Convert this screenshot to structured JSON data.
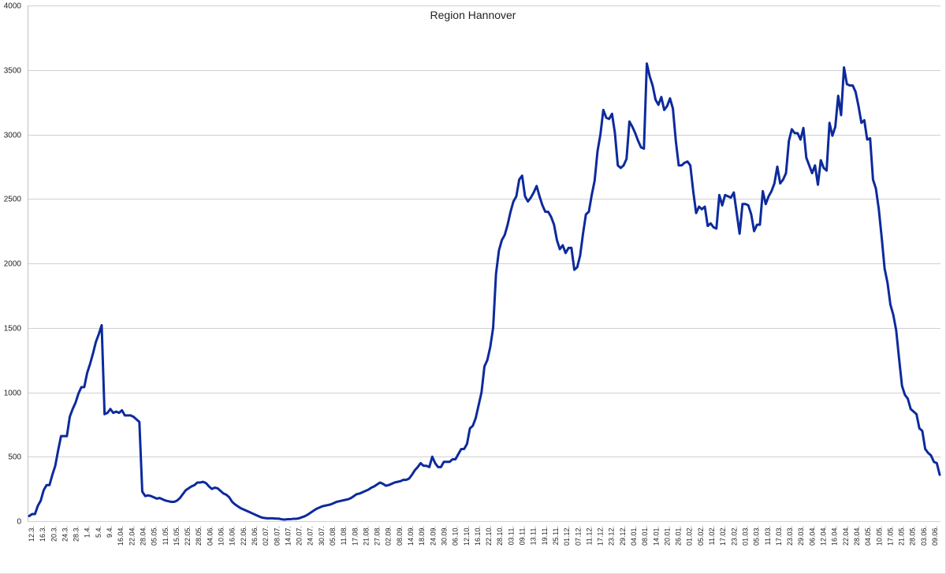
{
  "chart_data": {
    "type": "line",
    "title": "Region Hannover",
    "xlabel": "",
    "ylabel": "",
    "ylim": [
      0,
      4000
    ],
    "y_ticks": [
      0,
      500,
      1000,
      1500,
      2000,
      2500,
      3000,
      3500,
      4000
    ],
    "grid": true,
    "legend": "none",
    "colors": {
      "series": "#0d2a9c",
      "grid": "#d0d0d0",
      "text": "#222222"
    },
    "x_tick_labels": [
      "12.3.",
      "16.3.",
      "20.3.",
      "24.3.",
      "28.3.",
      "1.4.",
      "5.4.",
      "9.4.",
      "16.04.",
      "22.04.",
      "28.04.",
      "05.05.",
      "11.05.",
      "15.05.",
      "22.05.",
      "28.05.",
      "04.06.",
      "10.06.",
      "16.06.",
      "22.06.",
      "26.06.",
      "02.07.",
      "08.07.",
      "14.07.",
      "20.07.",
      "24.07.",
      "30.07.",
      "05.08.",
      "11.08.",
      "17.08.",
      "21.08.",
      "27.08.",
      "02.09.",
      "08.09.",
      "14.09.",
      "18.09.",
      "24.09.",
      "30.09.",
      "06.10.",
      "12.10.",
      "16.10.",
      "22.10.",
      "28.10.",
      "03.11.",
      "09.11.",
      "13.11.",
      "19.11.",
      "25.11.",
      "01.12.",
      "07.12.",
      "11.12.",
      "17.12.",
      "23.12.",
      "29.12.",
      "04.01.",
      "08.01.",
      "14.01.",
      "20.01.",
      "26.01.",
      "01.02.",
      "05.02.",
      "11.02.",
      "17.02.",
      "23.02.",
      "01.03.",
      "05.03.",
      "11.03.",
      "17.03.",
      "23.03.",
      "29.03.",
      "06.04.",
      "12.04.",
      "16.04.",
      "22.04.",
      "28.04.",
      "04.05.",
      "10.05.",
      "17.05.",
      "21.05.",
      "28.05.",
      "03.06.",
      "09.06."
    ],
    "series": [
      {
        "values": [
          40,
          55,
          55,
          120,
          160,
          240,
          280,
          280,
          360,
          430,
          550,
          660,
          660,
          660,
          810,
          870,
          920,
          990,
          1040,
          1040,
          1150,
          1220,
          1300,
          1390,
          1450,
          1520,
          830,
          840,
          870,
          840,
          850,
          840,
          860,
          820,
          820,
          820,
          810,
          790,
          770,
          230,
          195,
          200,
          195,
          185,
          175,
          180,
          170,
          160,
          155,
          150,
          150,
          160,
          180,
          210,
          240,
          255,
          270,
          280,
          300,
          300,
          305,
          295,
          270,
          250,
          260,
          255,
          235,
          215,
          205,
          185,
          150,
          130,
          115,
          100,
          90,
          80,
          70,
          60,
          50,
          40,
          30,
          25,
          22,
          22,
          22,
          20,
          20,
          15,
          12,
          15,
          15,
          18,
          18,
          22,
          30,
          38,
          50,
          65,
          80,
          95,
          105,
          115,
          120,
          125,
          130,
          140,
          150,
          155,
          160,
          165,
          170,
          180,
          195,
          210,
          215,
          225,
          235,
          245,
          260,
          270,
          285,
          300,
          290,
          275,
          280,
          290,
          300,
          305,
          310,
          320,
          320,
          330,
          360,
          395,
          420,
          450,
          430,
          430,
          420,
          500,
          450,
          420,
          420,
          460,
          460,
          460,
          480,
          480,
          520,
          560,
          560,
          600,
          720,
          740,
          800,
          900,
          1000,
          1200,
          1250,
          1350,
          1500,
          1920,
          2100,
          2180,
          2220,
          2300,
          2400,
          2480,
          2520,
          2650,
          2680,
          2520,
          2480,
          2510,
          2550,
          2600,
          2520,
          2450,
          2400,
          2400,
          2360,
          2300,
          2180,
          2110,
          2140,
          2080,
          2120,
          2120,
          1950,
          1970,
          2060,
          2230,
          2380,
          2400,
          2530,
          2640,
          2870,
          3000,
          3190,
          3130,
          3120,
          3160,
          3010,
          2760,
          2740,
          2760,
          2810,
          3100,
          3060,
          3010,
          2950,
          2900,
          2890,
          3550,
          3450,
          3380,
          3270,
          3230,
          3290,
          3190,
          3220,
          3280,
          3200,
          2950,
          2760,
          2760,
          2780,
          2790,
          2760,
          2560,
          2390,
          2440,
          2420,
          2440,
          2290,
          2310,
          2280,
          2270,
          2530,
          2450,
          2530,
          2520,
          2510,
          2550,
          2390,
          2230,
          2460,
          2460,
          2450,
          2380,
          2250,
          2300,
          2300,
          2560,
          2460,
          2520,
          2560,
          2620,
          2750,
          2620,
          2650,
          2700,
          2950,
          3040,
          3010,
          3010,
          2960,
          3050,
          2820,
          2760,
          2700,
          2760,
          2610,
          2800,
          2740,
          2720,
          3090,
          2990,
          3060,
          3300,
          3150,
          3520,
          3390,
          3380,
          3380,
          3330,
          3220,
          3090,
          3110,
          2960,
          2970,
          2650,
          2580,
          2420,
          2200,
          1960,
          1850,
          1680,
          1600,
          1480,
          1260,
          1050,
          980,
          950,
          870,
          850,
          830,
          720,
          700,
          560,
          530,
          510,
          460,
          450,
          360
        ]
      }
    ]
  }
}
